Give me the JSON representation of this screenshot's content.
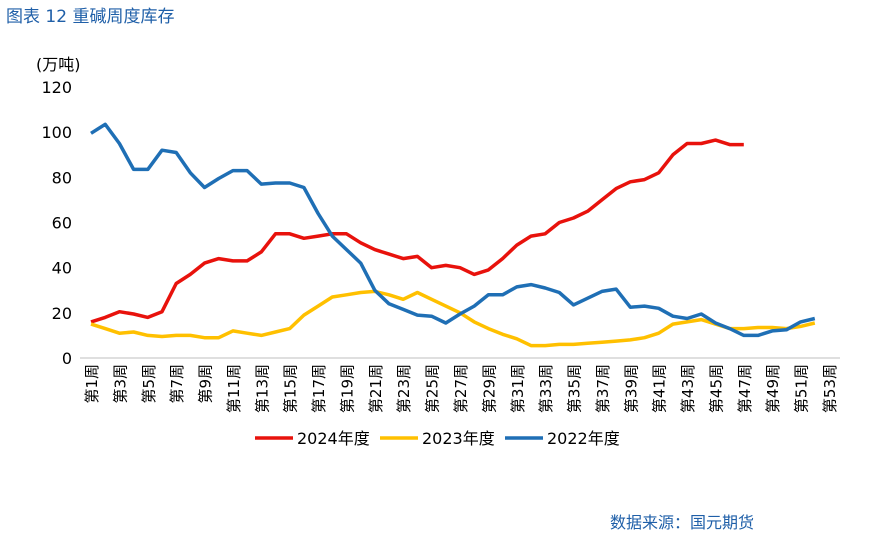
{
  "chart_data": {
    "type": "line",
    "title": "图表 12  重碱周度库存",
    "y_label": "(万吨)",
    "source": "数据来源：国元期货",
    "categories": [
      "第1周",
      null,
      "第3周",
      null,
      "第5周",
      null,
      "第7周",
      null,
      "第9周",
      null,
      "第11周",
      null,
      "第13周",
      null,
      "第15周",
      null,
      "第17周",
      null,
      "第19周",
      null,
      "第21周",
      null,
      "第23周",
      null,
      "第25周",
      null,
      "第27周",
      null,
      "第29周",
      null,
      "第31周",
      null,
      "第33周",
      null,
      "第35周",
      null,
      "第37周",
      null,
      "第39周",
      null,
      "第41周",
      null,
      "第43周",
      null,
      "第45周",
      null,
      "第47周",
      null,
      "第49周",
      null,
      "第51周",
      null,
      "第53周"
    ],
    "series": [
      {
        "name": "2024年度",
        "color": "#e8120c",
        "values": [
          16,
          18,
          20.5,
          19.5,
          18,
          20.5,
          33,
          37,
          42,
          44,
          43,
          43,
          47,
          55,
          55,
          53,
          54,
          55,
          55,
          51,
          48,
          46,
          44,
          45,
          40,
          41,
          40,
          37,
          39,
          44,
          50,
          54,
          55,
          60,
          62,
          65,
          70,
          75,
          78,
          79,
          82,
          90,
          95,
          95,
          96.5,
          94.5,
          94.5,
          null,
          null,
          null,
          null,
          null,
          null
        ]
      },
      {
        "name": "2023年度",
        "color": "#ffc000",
        "values": [
          15,
          13,
          11,
          11.5,
          10,
          9.5,
          10,
          10,
          9,
          9,
          12,
          11,
          10,
          11.5,
          13,
          19,
          23,
          27,
          28,
          29,
          29.5,
          28,
          26,
          29,
          26,
          23,
          20,
          16,
          13,
          10.5,
          8.5,
          5.5,
          5.5,
          6,
          6,
          6.5,
          7,
          7.5,
          8,
          9,
          11,
          15,
          16,
          17,
          15,
          13,
          13,
          13.5,
          13.5,
          13,
          14,
          15.5,
          null
        ]
      },
      {
        "name": "2022年度",
        "color": "#1f6fb5",
        "values": [
          99.5,
          103.5,
          95,
          83.5,
          83.5,
          92,
          91,
          82,
          75.5,
          79.5,
          83,
          83,
          77,
          77.5,
          77.5,
          75.5,
          64,
          54,
          48,
          42,
          30,
          24,
          21.5,
          19,
          18.5,
          15.5,
          19.5,
          23,
          28,
          28,
          31.5,
          32.5,
          31,
          29,
          23.5,
          26.5,
          29.5,
          30.5,
          22.5,
          23,
          22,
          18.5,
          17.5,
          19.5,
          15.5,
          13,
          10,
          10,
          12,
          12.5,
          16,
          17.5,
          null
        ]
      }
    ],
    "ylim": [
      0,
      120
    ],
    "yticks": [
      0,
      20,
      40,
      60,
      80,
      100,
      120
    ]
  }
}
